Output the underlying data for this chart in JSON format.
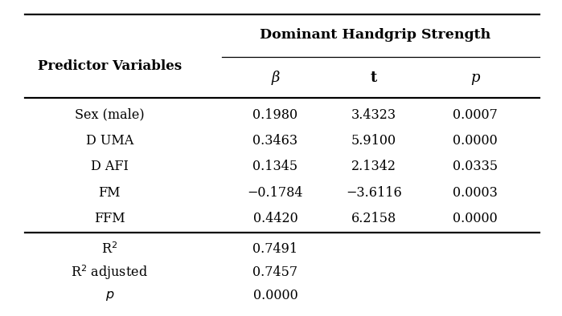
{
  "title": "Dominant Handgrip Strength",
  "col_header_left": "Predictor Variables",
  "col_headers": [
    "β",
    "t",
    "p"
  ],
  "rows": [
    [
      "Sex (male)",
      "0.1980",
      "3.4323",
      "0.0007"
    ],
    [
      "D UMA",
      "0.3463",
      "5.9100",
      "0.0000"
    ],
    [
      "D AFI",
      "0.1345",
      "2.1342",
      "0.0335"
    ],
    [
      "FM",
      "−0.1784",
      "−3.6116",
      "0.0003"
    ],
    [
      "FFM",
      "0.4420",
      "6.2158",
      "0.0000"
    ]
  ],
  "footer_values": [
    "0.7491",
    "0.7457",
    "0.0000"
  ],
  "bg_color": "#ffffff",
  "text_color": "#000000",
  "font_size": 11.5,
  "header_font_size": 12
}
